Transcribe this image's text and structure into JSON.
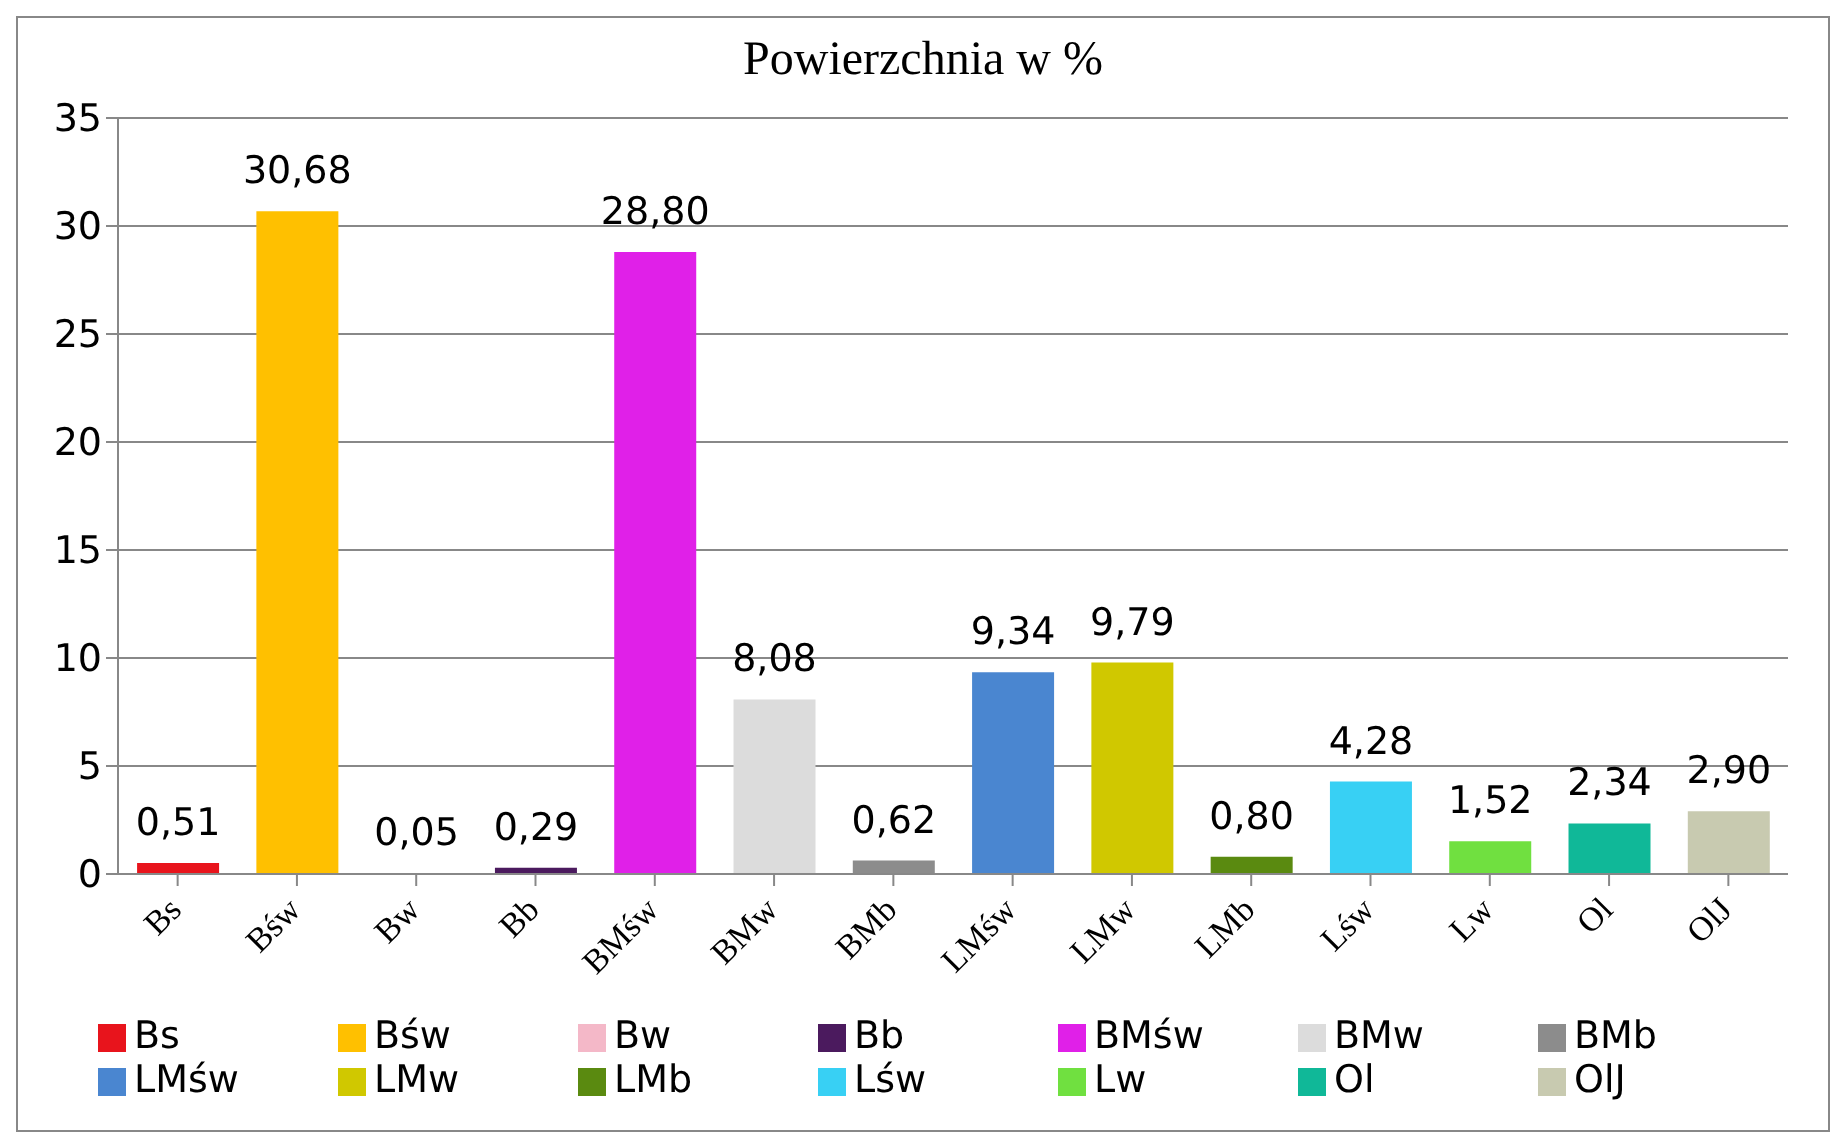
{
  "chart_data": {
    "type": "bar",
    "title": "Powierzchnia w %",
    "categories": [
      "Bs",
      "Bśw",
      "Bw",
      "Bb",
      "BMśw",
      "BMw",
      "BMb",
      "LMśw",
      "LMw",
      "LMb",
      "Lśw",
      "Lw",
      "Ol",
      "OlJ"
    ],
    "series": [
      {
        "name": "Bs",
        "color": "#e8141c",
        "values": [
          0.51,
          null,
          null,
          null,
          null,
          null,
          null,
          null,
          null,
          null,
          null,
          null,
          null,
          null
        ],
        "value_labels": [
          "0,51",
          null,
          null,
          null,
          null,
          null,
          null,
          null,
          null,
          null,
          null,
          null,
          null,
          null
        ]
      },
      {
        "name": "Bśw",
        "color": "#ffc000",
        "values": [
          null,
          30.68,
          null,
          null,
          null,
          null,
          null,
          null,
          null,
          null,
          null,
          null,
          null,
          null
        ],
        "value_labels": [
          null,
          "30,68",
          null,
          null,
          null,
          null,
          null,
          null,
          null,
          null,
          null,
          null,
          null,
          null
        ]
      },
      {
        "name": "Bw",
        "color": "#f4b8c8",
        "values": [
          null,
          null,
          0.05,
          null,
          null,
          null,
          null,
          null,
          null,
          null,
          null,
          null,
          null,
          null
        ],
        "value_labels": [
          null,
          null,
          "0,05",
          null,
          null,
          null,
          null,
          null,
          null,
          null,
          null,
          null,
          null,
          null
        ]
      },
      {
        "name": "Bb",
        "color": "#4b1a5e",
        "values": [
          null,
          null,
          null,
          0.29,
          null,
          null,
          null,
          null,
          null,
          null,
          null,
          null,
          null,
          null
        ],
        "value_labels": [
          null,
          null,
          null,
          "0,29",
          null,
          null,
          null,
          null,
          null,
          null,
          null,
          null,
          null,
          null
        ]
      },
      {
        "name": "BMśw",
        "color": "#e020e8",
        "values": [
          null,
          null,
          null,
          null,
          28.8,
          null,
          null,
          null,
          null,
          null,
          null,
          null,
          null,
          null
        ],
        "value_labels": [
          null,
          null,
          null,
          null,
          "28,80",
          null,
          null,
          null,
          null,
          null,
          null,
          null,
          null,
          null
        ]
      },
      {
        "name": "BMw",
        "color": "#dcdcdc",
        "values": [
          null,
          null,
          null,
          null,
          null,
          8.08,
          null,
          null,
          null,
          null,
          null,
          null,
          null,
          null
        ],
        "value_labels": [
          null,
          null,
          null,
          null,
          null,
          "8,08",
          null,
          null,
          null,
          null,
          null,
          null,
          null,
          null
        ]
      },
      {
        "name": "BMb",
        "color": "#8c8c8c",
        "values": [
          null,
          null,
          null,
          null,
          null,
          null,
          0.62,
          null,
          null,
          null,
          null,
          null,
          null,
          null
        ],
        "value_labels": [
          null,
          null,
          null,
          null,
          null,
          null,
          "0,62",
          null,
          null,
          null,
          null,
          null,
          null,
          null
        ]
      },
      {
        "name": "LMśw",
        "color": "#4a86d0",
        "values": [
          null,
          null,
          null,
          null,
          null,
          null,
          null,
          9.34,
          null,
          null,
          null,
          null,
          null,
          null
        ],
        "value_labels": [
          null,
          null,
          null,
          null,
          null,
          null,
          null,
          "9,34",
          null,
          null,
          null,
          null,
          null,
          null
        ]
      },
      {
        "name": "LMw",
        "color": "#d0c800",
        "values": [
          null,
          null,
          null,
          null,
          null,
          null,
          null,
          null,
          9.79,
          null,
          null,
          null,
          null,
          null
        ],
        "value_labels": [
          null,
          null,
          null,
          null,
          null,
          null,
          null,
          null,
          "9,79",
          null,
          null,
          null,
          null,
          null
        ]
      },
      {
        "name": "LMb",
        "color": "#5a8a10",
        "values": [
          null,
          null,
          null,
          null,
          null,
          null,
          null,
          null,
          null,
          0.8,
          null,
          null,
          null,
          null
        ],
        "value_labels": [
          null,
          null,
          null,
          null,
          null,
          null,
          null,
          null,
          null,
          "0,80",
          null,
          null,
          null,
          null
        ]
      },
      {
        "name": "Lśw",
        "color": "#38d0f4",
        "values": [
          null,
          null,
          null,
          null,
          null,
          null,
          null,
          null,
          null,
          null,
          4.28,
          null,
          null,
          null
        ],
        "value_labels": [
          null,
          null,
          null,
          null,
          null,
          null,
          null,
          null,
          null,
          null,
          "4,28",
          null,
          null,
          null
        ]
      },
      {
        "name": "Lw",
        "color": "#70e040",
        "values": [
          null,
          null,
          null,
          null,
          null,
          null,
          null,
          null,
          null,
          null,
          null,
          1.52,
          null,
          null
        ],
        "value_labels": [
          null,
          null,
          null,
          null,
          null,
          null,
          null,
          null,
          null,
          null,
          null,
          "1,52",
          null,
          null
        ]
      },
      {
        "name": "Ol",
        "color": "#10b898",
        "values": [
          null,
          null,
          null,
          null,
          null,
          null,
          null,
          null,
          null,
          null,
          null,
          null,
          2.34,
          null
        ],
        "value_labels": [
          null,
          null,
          null,
          null,
          null,
          null,
          null,
          null,
          null,
          null,
          null,
          null,
          "2,34",
          null
        ]
      },
      {
        "name": "OlJ",
        "color": "#c8cab0",
        "values": [
          null,
          null,
          null,
          null,
          null,
          null,
          null,
          null,
          null,
          null,
          null,
          null,
          null,
          2.9
        ],
        "value_labels": [
          null,
          null,
          null,
          null,
          null,
          null,
          null,
          null,
          null,
          null,
          null,
          null,
          null,
          "2,90"
        ]
      }
    ],
    "ylim": [
      0,
      35
    ],
    "yticks": [
      0,
      5,
      10,
      15,
      20,
      25,
      30,
      35
    ],
    "grid": "y",
    "legend": "bottom"
  }
}
